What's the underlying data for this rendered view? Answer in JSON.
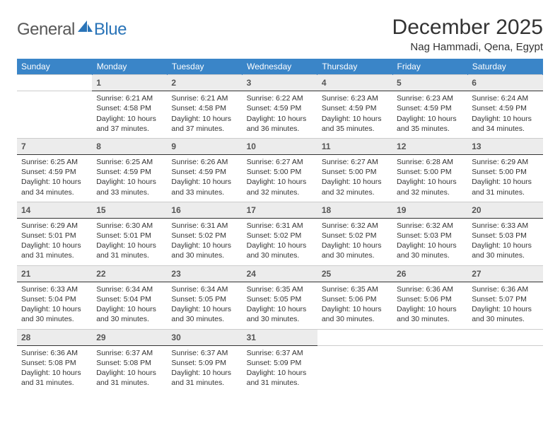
{
  "logo": {
    "part1": "General",
    "part2": "Blue"
  },
  "title": "December 2025",
  "location": "Nag Hammadi, Qena, Egypt",
  "colors": {
    "header_bg": "#3a85c8",
    "header_fg": "#ffffff",
    "daynum_bg": "#ececec",
    "daynum_border": "#333333",
    "text": "#333333",
    "logo_gray": "#585858",
    "logo_blue": "#2a74b8"
  },
  "weekdays": [
    "Sunday",
    "Monday",
    "Tuesday",
    "Wednesday",
    "Thursday",
    "Friday",
    "Saturday"
  ],
  "start_offset": 1,
  "days": [
    {
      "n": 1,
      "sr": "6:21 AM",
      "ss": "4:58 PM",
      "dl": "10 hours and 37 minutes."
    },
    {
      "n": 2,
      "sr": "6:21 AM",
      "ss": "4:58 PM",
      "dl": "10 hours and 37 minutes."
    },
    {
      "n": 3,
      "sr": "6:22 AM",
      "ss": "4:59 PM",
      "dl": "10 hours and 36 minutes."
    },
    {
      "n": 4,
      "sr": "6:23 AM",
      "ss": "4:59 PM",
      "dl": "10 hours and 35 minutes."
    },
    {
      "n": 5,
      "sr": "6:23 AM",
      "ss": "4:59 PM",
      "dl": "10 hours and 35 minutes."
    },
    {
      "n": 6,
      "sr": "6:24 AM",
      "ss": "4:59 PM",
      "dl": "10 hours and 34 minutes."
    },
    {
      "n": 7,
      "sr": "6:25 AM",
      "ss": "4:59 PM",
      "dl": "10 hours and 34 minutes."
    },
    {
      "n": 8,
      "sr": "6:25 AM",
      "ss": "4:59 PM",
      "dl": "10 hours and 33 minutes."
    },
    {
      "n": 9,
      "sr": "6:26 AM",
      "ss": "4:59 PM",
      "dl": "10 hours and 33 minutes."
    },
    {
      "n": 10,
      "sr": "6:27 AM",
      "ss": "5:00 PM",
      "dl": "10 hours and 32 minutes."
    },
    {
      "n": 11,
      "sr": "6:27 AM",
      "ss": "5:00 PM",
      "dl": "10 hours and 32 minutes."
    },
    {
      "n": 12,
      "sr": "6:28 AM",
      "ss": "5:00 PM",
      "dl": "10 hours and 32 minutes."
    },
    {
      "n": 13,
      "sr": "6:29 AM",
      "ss": "5:00 PM",
      "dl": "10 hours and 31 minutes."
    },
    {
      "n": 14,
      "sr": "6:29 AM",
      "ss": "5:01 PM",
      "dl": "10 hours and 31 minutes."
    },
    {
      "n": 15,
      "sr": "6:30 AM",
      "ss": "5:01 PM",
      "dl": "10 hours and 31 minutes."
    },
    {
      "n": 16,
      "sr": "6:31 AM",
      "ss": "5:02 PM",
      "dl": "10 hours and 30 minutes."
    },
    {
      "n": 17,
      "sr": "6:31 AM",
      "ss": "5:02 PM",
      "dl": "10 hours and 30 minutes."
    },
    {
      "n": 18,
      "sr": "6:32 AM",
      "ss": "5:02 PM",
      "dl": "10 hours and 30 minutes."
    },
    {
      "n": 19,
      "sr": "6:32 AM",
      "ss": "5:03 PM",
      "dl": "10 hours and 30 minutes."
    },
    {
      "n": 20,
      "sr": "6:33 AM",
      "ss": "5:03 PM",
      "dl": "10 hours and 30 minutes."
    },
    {
      "n": 21,
      "sr": "6:33 AM",
      "ss": "5:04 PM",
      "dl": "10 hours and 30 minutes."
    },
    {
      "n": 22,
      "sr": "6:34 AM",
      "ss": "5:04 PM",
      "dl": "10 hours and 30 minutes."
    },
    {
      "n": 23,
      "sr": "6:34 AM",
      "ss": "5:05 PM",
      "dl": "10 hours and 30 minutes."
    },
    {
      "n": 24,
      "sr": "6:35 AM",
      "ss": "5:05 PM",
      "dl": "10 hours and 30 minutes."
    },
    {
      "n": 25,
      "sr": "6:35 AM",
      "ss": "5:06 PM",
      "dl": "10 hours and 30 minutes."
    },
    {
      "n": 26,
      "sr": "6:36 AM",
      "ss": "5:06 PM",
      "dl": "10 hours and 30 minutes."
    },
    {
      "n": 27,
      "sr": "6:36 AM",
      "ss": "5:07 PM",
      "dl": "10 hours and 30 minutes."
    },
    {
      "n": 28,
      "sr": "6:36 AM",
      "ss": "5:08 PM",
      "dl": "10 hours and 31 minutes."
    },
    {
      "n": 29,
      "sr": "6:37 AM",
      "ss": "5:08 PM",
      "dl": "10 hours and 31 minutes."
    },
    {
      "n": 30,
      "sr": "6:37 AM",
      "ss": "5:09 PM",
      "dl": "10 hours and 31 minutes."
    },
    {
      "n": 31,
      "sr": "6:37 AM",
      "ss": "5:09 PM",
      "dl": "10 hours and 31 minutes."
    }
  ],
  "labels": {
    "sunrise": "Sunrise:",
    "sunset": "Sunset:",
    "daylight": "Daylight:"
  }
}
